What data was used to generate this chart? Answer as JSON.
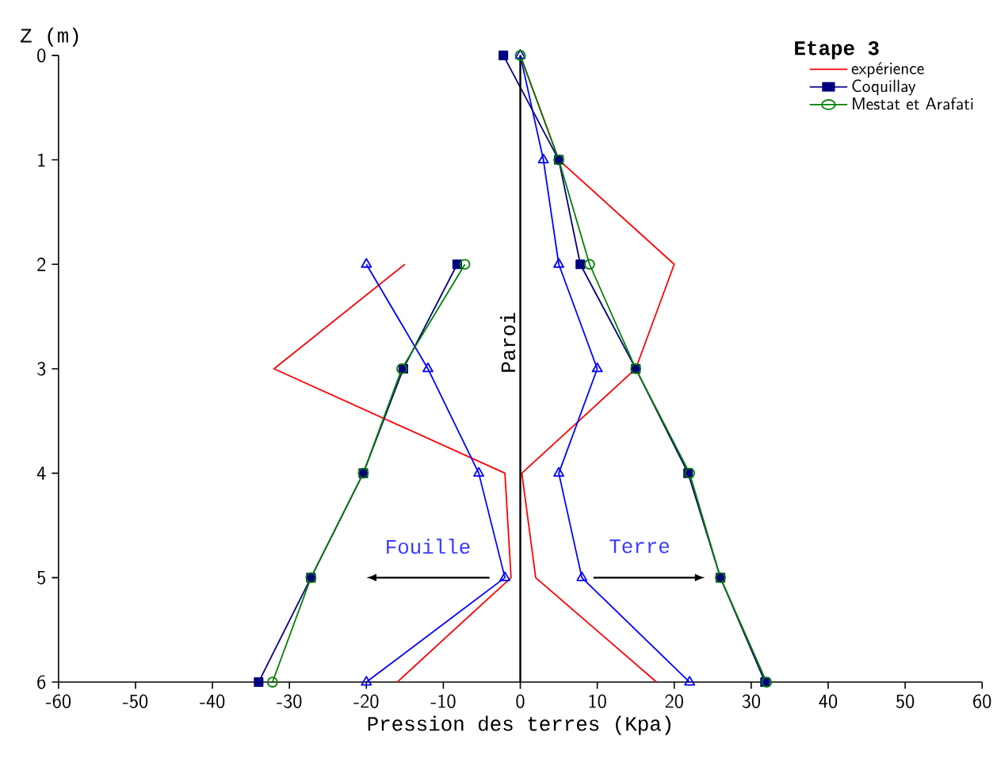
{
  "chart_data": {
    "type": "line",
    "legend_title": "Etape 3",
    "xlabel": "Pression des terres (Kpa)",
    "ylabel": "Z (m)",
    "xlim": [
      -60,
      60
    ],
    "ylim": [
      6,
      0
    ],
    "xticks": [
      -60,
      -50,
      -40,
      -30,
      -20,
      -10,
      0,
      10,
      20,
      30,
      40,
      50,
      60
    ],
    "yticks": [
      0,
      1,
      2,
      3,
      4,
      5,
      6
    ],
    "grid": false,
    "legend": "top right",
    "series": [
      {
        "name": "expérience",
        "color": "#ff0000",
        "marker": "none",
        "x": [
          -15,
          -32,
          -2,
          -1.2,
          -16,
          null,
          0,
          5,
          20,
          15,
          0.2,
          2,
          17.7
        ],
        "values": [
          2,
          3,
          4,
          5,
          6,
          null,
          0,
          1,
          2,
          3,
          4,
          5,
          6
        ]
      },
      {
        "color": "#0000ff",
        "marker": "triangle",
        "x": [
          -20,
          -12,
          -5.4,
          -2,
          -20,
          null,
          0,
          3,
          5,
          10,
          5,
          8,
          22
        ],
        "values": [
          2,
          3,
          4,
          5,
          6,
          null,
          0,
          1,
          2,
          3,
          4,
          5,
          6
        ]
      },
      {
        "name": "Coquillay",
        "color": "#000080",
        "marker": "square",
        "x": [
          -8.2,
          -15.2,
          -20.4,
          -27.2,
          -34,
          null,
          -2.2,
          5,
          7.8,
          15,
          21.8,
          26,
          31.8
        ],
        "values": [
          2,
          3,
          4,
          5,
          6,
          null,
          0,
          1,
          2,
          3,
          4,
          5,
          6
        ]
      },
      {
        "name": "Mestat et Arafati",
        "color": "#008000",
        "marker": "circle",
        "x": [
          -7.2,
          -15.4,
          -20.4,
          -27.2,
          -32.2,
          null,
          0,
          5,
          9,
          15,
          22,
          26,
          32
        ],
        "values": [
          2,
          3,
          4,
          5,
          6,
          null,
          0,
          1,
          2,
          3,
          4,
          5,
          6
        ]
      }
    ],
    "ref_lines": [
      {
        "axis": "x",
        "value": 0,
        "label": "Paroi"
      }
    ],
    "annotations": [
      "Fouille",
      "Terre"
    ]
  }
}
